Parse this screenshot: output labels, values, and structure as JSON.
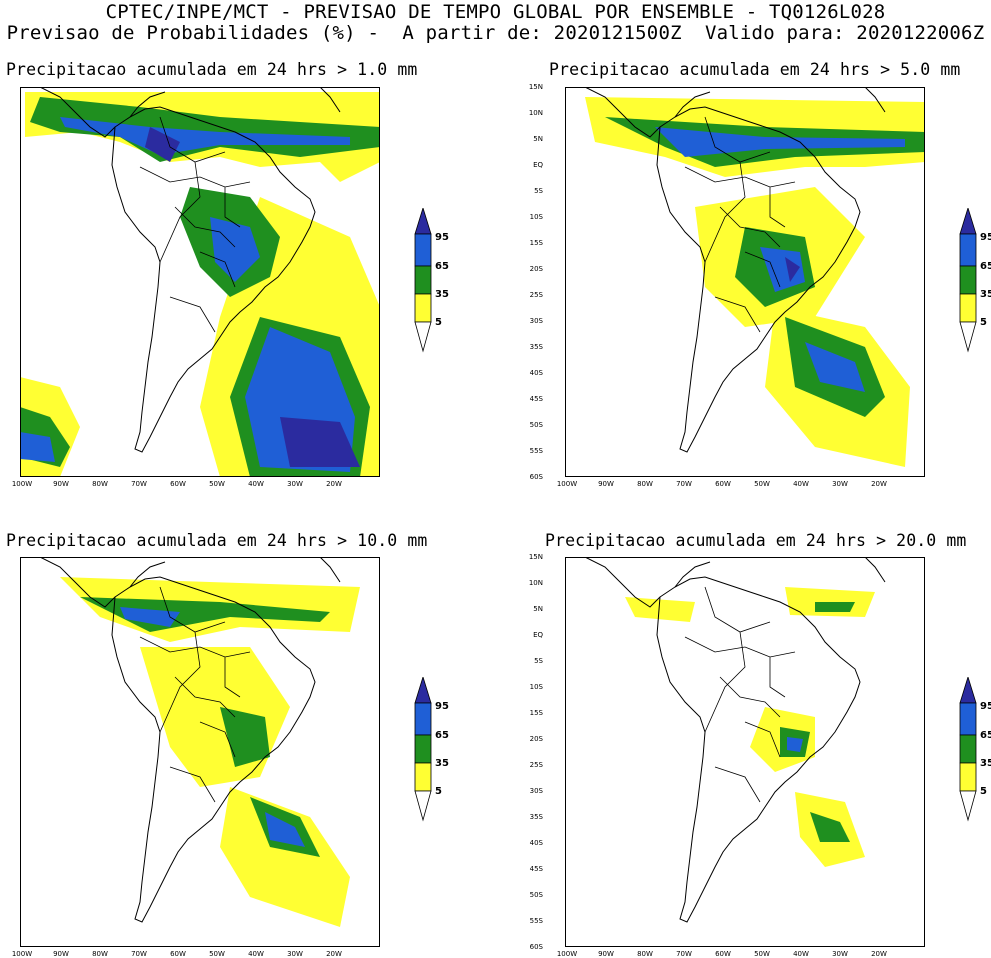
{
  "header": {
    "line1": "CPTEC/INPE/MCT - PREVISAO DE TEMPO GLOBAL POR ENSEMBLE - TQ0126L028",
    "line2": "Previsao de Probabilidades (%) -  A partir de: 2020121500Z  Valido para: 2020122006Z"
  },
  "panels": [
    {
      "title": "Precipitacao acumulada em 24 hrs > 1.0 mm",
      "threshold_mm": 1.0
    },
    {
      "title": "Precipitacao acumulada em 24 hrs > 5.0 mm",
      "threshold_mm": 5.0
    },
    {
      "title": "Precipitacao acumulada em 24 hrs > 10.0 mm",
      "threshold_mm": 10.0
    },
    {
      "title": "Precipitacao acumulada em 24 hrs > 20.0 mm",
      "threshold_mm": 20.0
    }
  ],
  "axes": {
    "lat_labels": [
      "15N",
      "10N",
      "5N",
      "EQ",
      "5S",
      "10S",
      "15S",
      "20S",
      "25S",
      "30S",
      "35S",
      "40S",
      "45S",
      "50S",
      "55S",
      "60S"
    ],
    "lon_labels": [
      "100W",
      "90W",
      "80W",
      "70W",
      "60W",
      "50W",
      "40W",
      "30W",
      "20W"
    ]
  },
  "colorbar": {
    "labels": [
      "95",
      "65",
      "35",
      "5"
    ],
    "colors": {
      "low": "#ffff33",
      "mid": "#1f8f1f",
      "high": "#1f5fd6",
      "top": "#2b2b9f"
    }
  }
}
